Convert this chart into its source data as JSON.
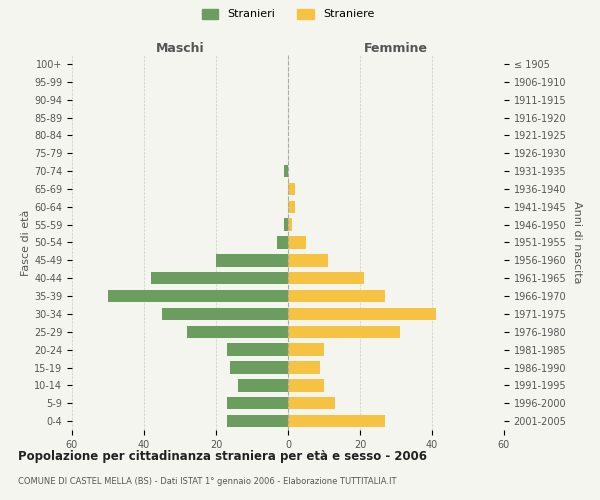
{
  "age_groups": [
    "100+",
    "95-99",
    "90-94",
    "85-89",
    "80-84",
    "75-79",
    "70-74",
    "65-69",
    "60-64",
    "55-59",
    "50-54",
    "45-49",
    "40-44",
    "35-39",
    "30-34",
    "25-29",
    "20-24",
    "15-19",
    "10-14",
    "5-9",
    "0-4"
  ],
  "birth_years": [
    "≤ 1905",
    "1906-1910",
    "1911-1915",
    "1916-1920",
    "1921-1925",
    "1926-1930",
    "1931-1935",
    "1936-1940",
    "1941-1945",
    "1946-1950",
    "1951-1955",
    "1956-1960",
    "1961-1965",
    "1966-1970",
    "1971-1975",
    "1976-1980",
    "1981-1985",
    "1986-1990",
    "1991-1995",
    "1996-2000",
    "2001-2005"
  ],
  "maschi": [
    0,
    0,
    0,
    0,
    0,
    0,
    1,
    0,
    0,
    1,
    3,
    20,
    38,
    50,
    35,
    28,
    17,
    16,
    14,
    17,
    17
  ],
  "femmine": [
    0,
    0,
    0,
    0,
    0,
    0,
    0,
    2,
    2,
    1,
    5,
    11,
    21,
    27,
    41,
    31,
    10,
    9,
    10,
    13,
    27
  ],
  "maschi_color": "#6b9e5e",
  "femmine_color": "#f5c242",
  "background_color": "#f5f5f0",
  "grid_color": "#cccccc",
  "title": "Popolazione per cittadinanza straniera per età e sesso - 2006",
  "subtitle": "COMUNE DI CASTEL MELLA (BS) - Dati ISTAT 1° gennaio 2006 - Elaborazione TUTTITALIA.IT",
  "xlabel_left": "Maschi",
  "xlabel_right": "Femmine",
  "ylabel_left": "Fasce di età",
  "ylabel_right": "Anni di nascita",
  "legend_stranieri": "Stranieri",
  "legend_straniere": "Straniere",
  "xlim": 60
}
